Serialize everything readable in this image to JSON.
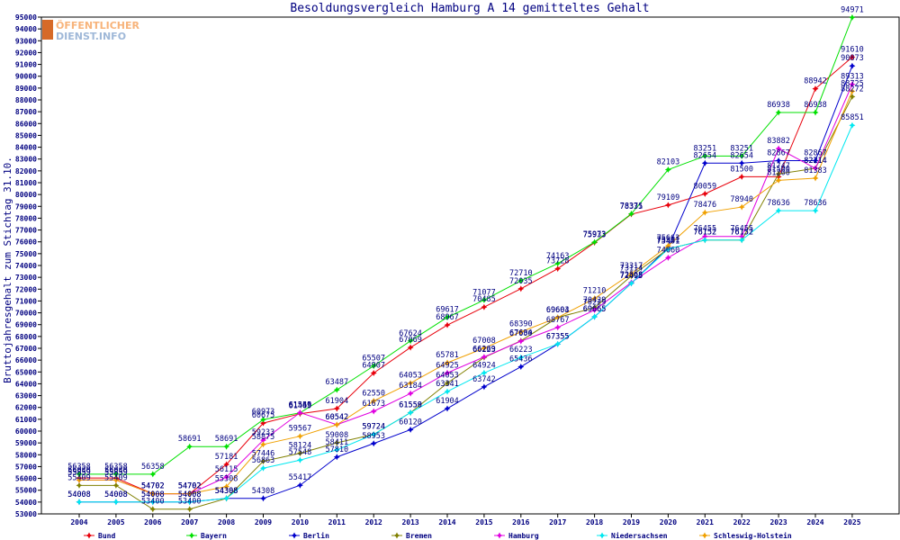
{
  "logo": {
    "line1": "ÖFFENTLICHER",
    "line2": "DIENST.INFO"
  },
  "chart_data": {
    "type": "line",
    "title": "Besoldungsvergleich Hamburg A 14 gemitteltes Gehalt",
    "xlabel": "",
    "ylabel": "Bruttojahresgehalt zum Stichtag 31.10.",
    "ylim": [
      53000,
      95000
    ],
    "ytick_step": 1000,
    "grid": false,
    "legend_position": "bottom",
    "x": [
      "2004",
      "2005",
      "2006",
      "2007",
      "2008",
      "2009",
      "2010",
      "2011",
      "2012",
      "2013",
      "2014",
      "2015",
      "2016",
      "2017",
      "2018",
      "2019",
      "2020",
      "2021",
      "2022",
      "2023",
      "2024",
      "2025"
    ],
    "series": [
      {
        "name": "Bund",
        "color": "#e8000b",
        "values": [
          56030,
          56030,
          54702,
          54702,
          57181,
          60675,
          61469,
          61904,
          64907,
          67069,
          68967,
          70485,
          72035,
          73728,
          75933,
          78335,
          79109,
          80059,
          81500,
          81500,
          88942,
          91610
        ]
      },
      {
        "name": "Bayern",
        "color": "#00e000",
        "values": [
          56358,
          56358,
          56358,
          58691,
          58691,
          60973,
          61545,
          63487,
          65507,
          67624,
          69617,
          71077,
          72710,
          74163,
          75973,
          78371,
          82103,
          83251,
          83251,
          86938,
          86938,
          94971
        ]
      },
      {
        "name": "Berlin",
        "color": "#0000cc",
        "values": [
          54008,
          54008,
          54008,
          54008,
          54308,
          54308,
          55417,
          57810,
          58953,
          60120,
          61904,
          63742,
          65436,
          67355,
          69665,
          72495,
          75511,
          82654,
          82654,
          82867,
          82867,
          90873
        ]
      },
      {
        "name": "Bremen",
        "color": "#808000",
        "values": [
          55409,
          55409,
          53400,
          53400,
          54308,
          57446,
          58124,
          59008,
          59724,
          61558,
          64053,
          66223,
          67634,
          69604,
          70429,
          73114,
          75401,
          76152,
          76152,
          81747,
          82214,
          88272
        ]
      },
      {
        "name": "Hamburg",
        "color": "#e000e0",
        "values": [
          55859,
          55859,
          54702,
          54702,
          56115,
          59233,
          61559,
          60542,
          61673,
          63184,
          64925,
          66269,
          67600,
          68767,
          70229,
          72568,
          74660,
          76455,
          76455,
          83882,
          82214,
          89313
        ]
      },
      {
        "name": "Niedersachsen",
        "color": "#00e8f0",
        "values": [
          54008,
          54008,
          54008,
          54008,
          54308,
          56863,
          57548,
          58411,
          59724,
          61559,
          63341,
          64924,
          66223,
          67355,
          69665,
          72495,
          75401,
          76152,
          76152,
          78636,
          78636,
          85851
        ]
      },
      {
        "name": "Schleswig-Holstein",
        "color": "#f0a000",
        "values": [
          55859,
          55859,
          54702,
          54702,
          55308,
          58875,
          59567,
          60542,
          62550,
          64053,
          65781,
          67008,
          68390,
          69603,
          71210,
          73317,
          75663,
          78476,
          78940,
          81200,
          81383,
          88725
        ]
      }
    ],
    "data_labels": [
      {
        "s": 0,
        "t": "56030"
      },
      {
        "s": 0,
        "t": "56030"
      },
      {
        "s": 0,
        "t": "54702"
      },
      {
        "s": 0,
        "t": "54702"
      },
      {
        "s": 0,
        "t": "57181"
      },
      {
        "s": 0,
        "t": "60675"
      },
      {
        "s": 0,
        "t": "61469"
      },
      {
        "s": 0,
        "t": "61904"
      },
      {
        "s": 0,
        "t": "64907"
      },
      {
        "s": 0,
        "t": "67069"
      },
      {
        "s": 0,
        "t": "68967"
      },
      {
        "s": 0,
        "t": "70485"
      },
      {
        "s": 0,
        "t": "72035"
      },
      {
        "s": 0,
        "t": "73728"
      },
      {
        "s": 0,
        "t": "75933"
      },
      {
        "s": 0,
        "t": "78335"
      },
      {
        "s": 0,
        "t": "79109"
      },
      {
        "s": 0,
        "t": "80059"
      },
      {
        "s": 0,
        "t": "81500"
      },
      {
        "s": 0,
        "t": "81500"
      },
      {
        "s": 0,
        "t": "88942"
      },
      {
        "s": 0,
        "t": "91610"
      }
    ]
  }
}
